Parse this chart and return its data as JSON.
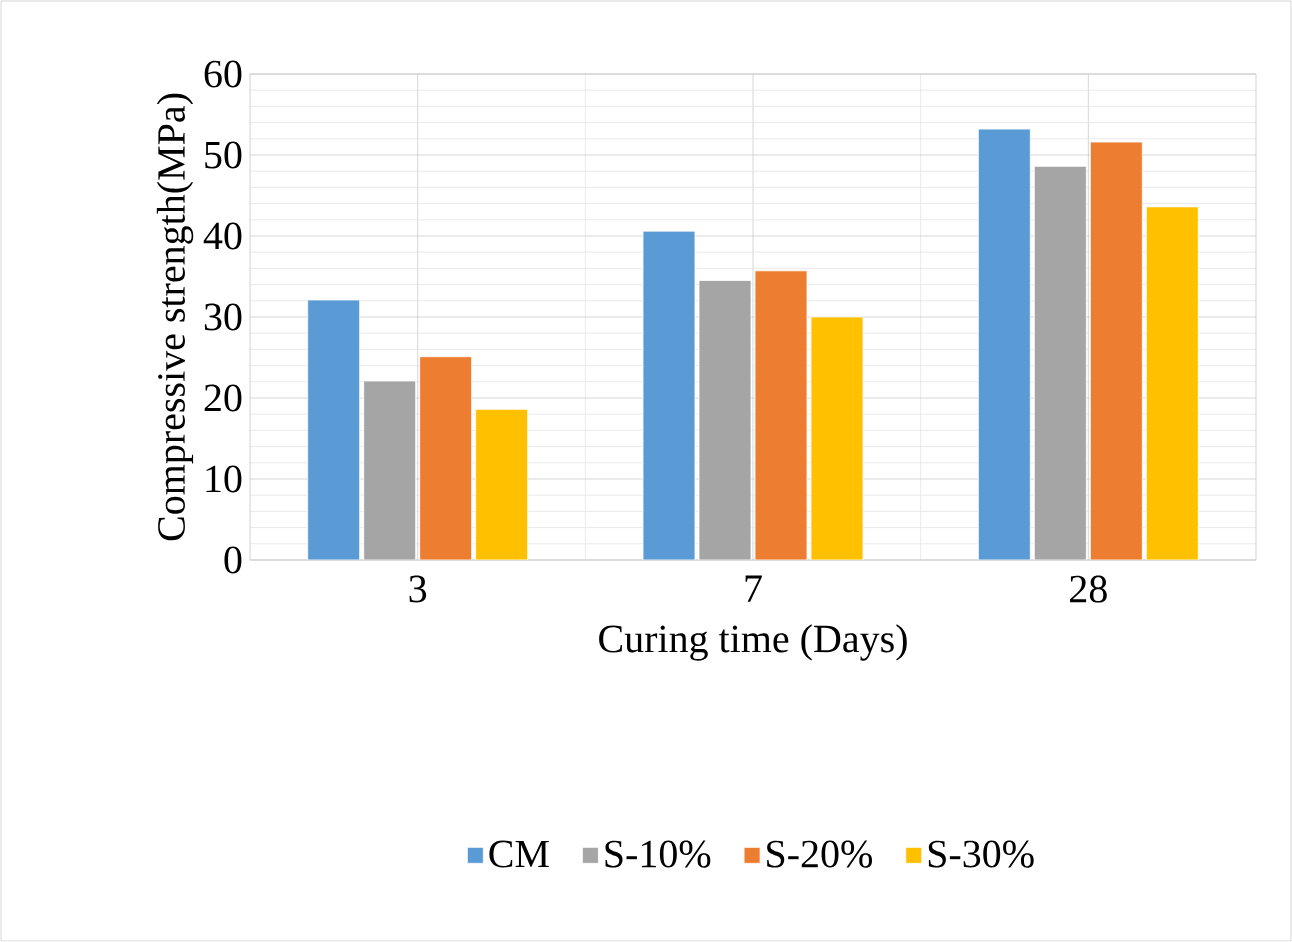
{
  "chart_data": {
    "type": "bar",
    "xlabel": "Curing time (Days)",
    "ylabel": "Compressive strength(MPa)",
    "categories": [
      "3",
      "7",
      "28"
    ],
    "series": [
      {
        "name": "CM",
        "color": "#5b9bd5",
        "values": [
          32.1,
          40.6,
          53.2
        ]
      },
      {
        "name": "S-10%",
        "color": "#a5a5a5",
        "values": [
          22.1,
          34.5,
          48.6
        ]
      },
      {
        "name": "S-20%",
        "color": "#ed7d31",
        "values": [
          25.1,
          35.7,
          51.6
        ]
      },
      {
        "name": "S-30%",
        "color": "#ffc000",
        "values": [
          18.6,
          30.0,
          43.6
        ]
      }
    ],
    "ylim": [
      0,
      60
    ],
    "yticks": [
      0,
      10,
      20,
      30,
      40,
      50,
      60
    ],
    "grid": true,
    "legend": "bottom"
  }
}
